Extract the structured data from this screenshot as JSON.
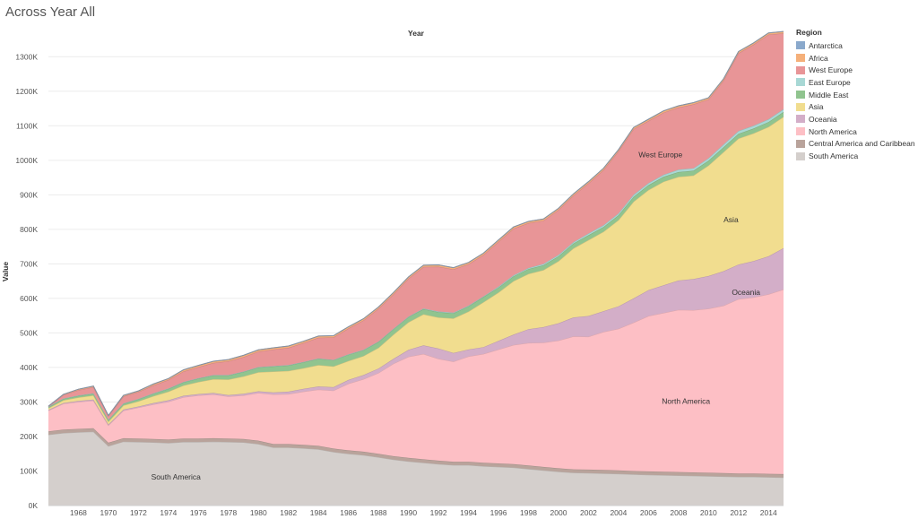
{
  "title": "Across Year All",
  "chart_data": {
    "type": "area",
    "stacked": true,
    "title": "Across Year All",
    "column_header": "Year",
    "xlabel": "",
    "ylabel": "Value",
    "legend_title": "Region",
    "legend_position": "right",
    "ylim": [
      0,
      1350000
    ],
    "xlim": [
      1966,
      2015
    ],
    "y_ticks": [
      {
        "value": 0,
        "label": "0K"
      },
      {
        "value": 100000,
        "label": "100K"
      },
      {
        "value": 200000,
        "label": "200K"
      },
      {
        "value": 300000,
        "label": "300K"
      },
      {
        "value": 400000,
        "label": "400K"
      },
      {
        "value": 500000,
        "label": "500K"
      },
      {
        "value": 600000,
        "label": "600K"
      },
      {
        "value": 700000,
        "label": "700K"
      },
      {
        "value": 800000,
        "label": "800K"
      },
      {
        "value": 900000,
        "label": "900K"
      },
      {
        "value": 1000000,
        "label": "1000K"
      },
      {
        "value": 1100000,
        "label": "1100K"
      },
      {
        "value": 1200000,
        "label": "1200K"
      },
      {
        "value": 1300000,
        "label": "1300K"
      }
    ],
    "x_ticks": [
      1968,
      1970,
      1972,
      1974,
      1976,
      1978,
      1980,
      1982,
      1984,
      1986,
      1988,
      1990,
      1992,
      1994,
      1996,
      1998,
      2000,
      2002,
      2004,
      2006,
      2008,
      2010,
      2012,
      2014
    ],
    "x": [
      1966,
      1967,
      1968,
      1969,
      1970,
      1971,
      1972,
      1973,
      1974,
      1975,
      1976,
      1977,
      1978,
      1979,
      1980,
      1981,
      1982,
      1983,
      1984,
      1985,
      1986,
      1987,
      1988,
      1989,
      1990,
      1991,
      1992,
      1993,
      1994,
      1995,
      1996,
      1997,
      1998,
      1999,
      2000,
      2001,
      2002,
      2003,
      2004,
      2005,
      2006,
      2007,
      2008,
      2009,
      2010,
      2011,
      2012,
      2013,
      2014,
      2015
    ],
    "series": [
      {
        "name": "South America",
        "color": "#d4cfcc",
        "label": "South America",
        "label_x": 1974.5,
        "label_y": 75000,
        "values": [
          205000,
          210000,
          212000,
          214000,
          172000,
          185000,
          184000,
          183000,
          181000,
          184000,
          184000,
          185000,
          184000,
          183000,
          178000,
          168000,
          168000,
          166000,
          163000,
          155000,
          150000,
          146000,
          140000,
          133000,
          128000,
          124000,
          120000,
          117000,
          117000,
          114000,
          112000,
          110000,
          106000,
          102000,
          98000,
          95000,
          94000,
          93000,
          92000,
          90000,
          89000,
          88000,
          87000,
          86000,
          85000,
          84000,
          83000,
          83000,
          82000,
          81000
        ]
      },
      {
        "name": "Central America and Caribbean",
        "color": "#b9a39b",
        "values": [
          10000,
          10000,
          10000,
          10000,
          10000,
          10000,
          10000,
          10000,
          10000,
          10000,
          10000,
          10000,
          10000,
          10000,
          10000,
          10000,
          10000,
          10000,
          10000,
          10000,
          10000,
          10000,
          10000,
          10000,
          10000,
          10000,
          10000,
          10000,
          10000,
          10000,
          10000,
          10000,
          10000,
          10000,
          10000,
          10000,
          10000,
          10000,
          10000,
          10000,
          10000,
          10000,
          10000,
          10000,
          10000,
          10000,
          10000,
          10000,
          10000,
          10000
        ]
      },
      {
        "name": "North America",
        "color": "#fdbfc5",
        "label": "North America",
        "label_x": 2008.5,
        "label_y": 295000,
        "values": [
          60000,
          75000,
          78000,
          80000,
          50000,
          80000,
          90000,
          100000,
          110000,
          120000,
          125000,
          127000,
          122000,
          126000,
          138000,
          144000,
          145000,
          154000,
          163000,
          168000,
          193000,
          210000,
          234000,
          268000,
          293000,
          305000,
          295000,
          290000,
          305000,
          315000,
          330000,
          345000,
          355000,
          360000,
          370000,
          385000,
          385000,
          400000,
          410000,
          430000,
          450000,
          460000,
          470000,
          470000,
          475000,
          485000,
          505000,
          510000,
          520000,
          535000
        ]
      },
      {
        "name": "Oceania",
        "color": "#d3aec8",
        "label": "Oceania",
        "label_x": 2012.5,
        "label_y": 610000,
        "values": [
          2000,
          2000,
          3000,
          3000,
          3000,
          3000,
          3000,
          4000,
          4000,
          4000,
          4000,
          4000,
          4000,
          5000,
          5000,
          6000,
          7000,
          8000,
          9000,
          10000,
          11000,
          12000,
          13000,
          14000,
          20000,
          25000,
          30000,
          25000,
          20000,
          20000,
          25000,
          30000,
          40000,
          45000,
          50000,
          55000,
          60000,
          60000,
          65000,
          70000,
          75000,
          80000,
          85000,
          90000,
          95000,
          100000,
          100000,
          105000,
          110000,
          120000
        ]
      },
      {
        "name": "Asia",
        "color": "#f1dd8f",
        "label": "Asia",
        "label_x": 2011.5,
        "label_y": 820000,
        "values": [
          5000,
          8000,
          10000,
          12000,
          8000,
          12000,
          15000,
          20000,
          25000,
          30000,
          35000,
          40000,
          45000,
          50000,
          55000,
          60000,
          60000,
          60000,
          62000,
          60000,
          55000,
          55000,
          60000,
          70000,
          80000,
          90000,
          90000,
          100000,
          110000,
          130000,
          140000,
          155000,
          160000,
          165000,
          180000,
          200000,
          220000,
          230000,
          250000,
          280000,
          290000,
          300000,
          300000,
          300000,
          320000,
          345000,
          365000,
          370000,
          375000,
          380000
        ]
      },
      {
        "name": "Middle East",
        "color": "#90c48f",
        "values": [
          3000,
          4000,
          5000,
          5000,
          5000,
          5000,
          6000,
          7000,
          8000,
          9000,
          10000,
          11000,
          12000,
          13000,
          14000,
          15000,
          16000,
          17000,
          18000,
          18000,
          18000,
          17000,
          17000,
          16000,
          15000,
          15000,
          15000,
          15000,
          15000,
          15000,
          14000,
          14000,
          14000,
          14000,
          14000,
          14000,
          14000,
          14000,
          14000,
          14000,
          14000,
          14000,
          14000,
          14000,
          14000,
          14000,
          14000,
          14000,
          14000,
          14000
        ]
      },
      {
        "name": "East Europe",
        "color": "#a8d8d5",
        "values": [
          1000,
          1000,
          1000,
          1000,
          1000,
          1000,
          1000,
          1000,
          1000,
          1000,
          1000,
          1000,
          1000,
          1000,
          1000,
          1000,
          1000,
          1000,
          1000,
          1000,
          1000,
          1000,
          1000,
          1000,
          1000,
          2000,
          2000,
          2000,
          2000,
          2000,
          3000,
          3000,
          3000,
          4000,
          4000,
          4000,
          5000,
          5000,
          5000,
          6000,
          6000,
          6000,
          7000,
          7000,
          7000,
          8000,
          8000,
          8000,
          8000,
          8000
        ]
      },
      {
        "name": "West Europe",
        "color": "#e89597",
        "label": "West Europe",
        "label_x": 2006.8,
        "label_y": 1008000,
        "values": [
          1000,
          10000,
          15000,
          18000,
          10000,
          20000,
          20000,
          23000,
          25000,
          30000,
          32000,
          35000,
          40000,
          42000,
          45000,
          48000,
          50000,
          55000,
          60000,
          65000,
          75000,
          85000,
          95000,
          100000,
          110000,
          120000,
          130000,
          125000,
          120000,
          120000,
          130000,
          135000,
          130000,
          125000,
          130000,
          135000,
          145000,
          160000,
          180000,
          190000,
          180000,
          180000,
          180000,
          185000,
          170000,
          185000,
          225000,
          235000,
          245000,
          220000
        ]
      },
      {
        "name": "Africa",
        "color": "#f5b07a",
        "values": [
          1000,
          2000,
          3000,
          3000,
          2000,
          3000,
          3000,
          4000,
          4000,
          5000,
          5000,
          5000,
          5000,
          5000,
          5000,
          5000,
          5000,
          5000,
          5000,
          5000,
          5000,
          5000,
          5000,
          5000,
          5000,
          5000,
          5000,
          5000,
          5000,
          5000,
          5000,
          5000,
          5000,
          5000,
          5000,
          5000,
          5000,
          5000,
          5000,
          5000,
          5000,
          5000,
          5000,
          5000,
          5000,
          5000,
          5000,
          5000,
          5000,
          5000
        ]
      },
      {
        "name": "Antarctica",
        "color": "#8aa9cc",
        "values": [
          0,
          0,
          0,
          0,
          0,
          0,
          0,
          0,
          0,
          0,
          0,
          0,
          0,
          0,
          0,
          0,
          0,
          0,
          0,
          0,
          0,
          0,
          0,
          0,
          0,
          0,
          0,
          0,
          0,
          0,
          0,
          0,
          0,
          0,
          0,
          0,
          0,
          0,
          0,
          0,
          0,
          0,
          0,
          0,
          0,
          0,
          0,
          0,
          0,
          0
        ]
      }
    ],
    "legend_order": [
      "Antarctica",
      "Africa",
      "West Europe",
      "East Europe",
      "Middle East",
      "Asia",
      "Oceania",
      "North America",
      "Central America and Caribbean",
      "South America"
    ]
  }
}
